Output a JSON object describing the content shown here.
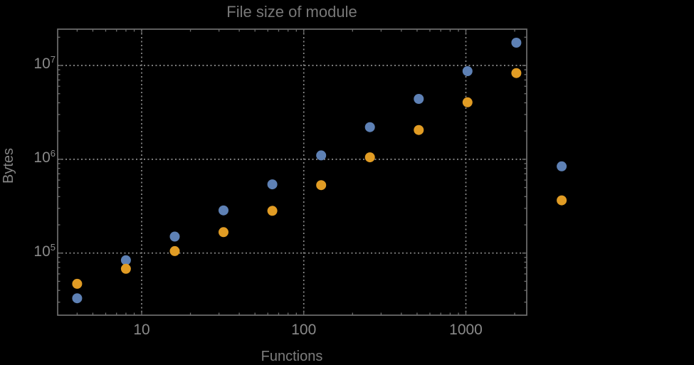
{
  "title": "File size of module",
  "axes": {
    "x_label": "Functions",
    "y_label": "Bytes",
    "x_tick_labels": [
      {
        "text": "10",
        "value": 10
      },
      {
        "text": "100",
        "value": 100
      },
      {
        "text": "1000",
        "value": 1000
      }
    ],
    "y_tick_labels": [
      {
        "base": "10",
        "exp": "5",
        "value": 100000
      },
      {
        "base": "10",
        "exp": "6",
        "value": 1000000
      },
      {
        "base": "10",
        "exp": "7",
        "value": 10000000
      }
    ]
  },
  "colors": {
    "background": "#000000",
    "frame": "#6e6e6e",
    "grid": "#8c8c8c",
    "title_text": "#787878",
    "tick_text": "#8a8a8a",
    "series_blue": "#5e81b5",
    "series_orange": "#e19c24"
  },
  "chart_data": {
    "type": "scatter",
    "title": "File size of module",
    "xlabel": "Functions",
    "ylabel": "Bytes",
    "x_scale": "log10",
    "y_scale": "log10",
    "xlim": [
      3.0,
      2370
    ],
    "ylim": [
      21800,
      24400000
    ],
    "x_ticks": [
      10,
      100,
      1000
    ],
    "y_ticks": [
      100000,
      1000000,
      10000000
    ],
    "grid": "dotted gridlines at decade ticks, all four frame edges have inward minor/major ticks",
    "legend": "none",
    "marker_diameter_px": 14,
    "note": "Last pair of points (x≈3900) is plotted beyond the right edge of the plot frame",
    "series": [
      {
        "name": "blue",
        "color": "#5e81b5",
        "points": [
          [
            4,
            33000
          ],
          [
            8,
            84000
          ],
          [
            16,
            150000
          ],
          [
            32,
            285000
          ],
          [
            64,
            540000
          ],
          [
            128,
            1100000
          ],
          [
            256,
            2200000
          ],
          [
            512,
            4400000
          ],
          [
            1024,
            8700000
          ],
          [
            2048,
            17500000
          ],
          [
            3900,
            840000
          ]
        ]
      },
      {
        "name": "orange",
        "color": "#e19c24",
        "points": [
          [
            4,
            47000
          ],
          [
            8,
            68000
          ],
          [
            16,
            105000
          ],
          [
            32,
            167000
          ],
          [
            64,
            282000
          ],
          [
            128,
            530000
          ],
          [
            256,
            1050000
          ],
          [
            512,
            2050000
          ],
          [
            1024,
            4050000
          ],
          [
            2048,
            8300000
          ],
          [
            3900,
            365000
          ]
        ]
      }
    ]
  }
}
